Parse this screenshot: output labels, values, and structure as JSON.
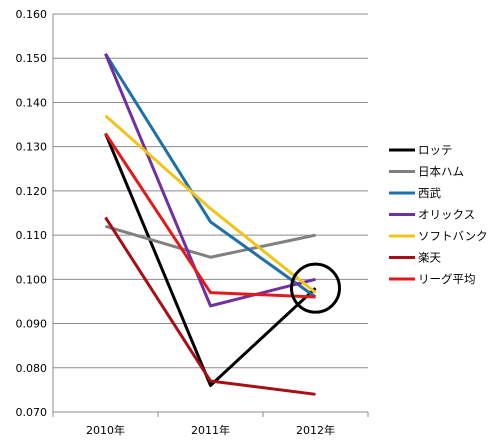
{
  "chart_data": {
    "type": "line",
    "categories": [
      "2010年",
      "2011年",
      "2012年"
    ],
    "ylim": [
      0.07,
      0.16
    ],
    "yticks": [
      "0.070",
      "0.080",
      "0.090",
      "0.100",
      "0.110",
      "0.120",
      "0.130",
      "0.140",
      "0.150",
      "0.160"
    ],
    "grid": "horizontal",
    "legend": "right",
    "series": [
      {
        "name": "ロッテ",
        "color": "#000000",
        "values": [
          0.133,
          0.076,
          0.098
        ]
      },
      {
        "name": "日本ハム",
        "color": "#808080",
        "values": [
          0.112,
          0.105,
          0.11
        ]
      },
      {
        "name": "西武",
        "color": "#1f6fa8",
        "values": [
          0.151,
          0.113,
          0.096
        ]
      },
      {
        "name": "オリックス",
        "color": "#7030a0",
        "values": [
          0.151,
          0.094,
          0.1
        ]
      },
      {
        "name": "ソフトバンク",
        "color": "#f0c419",
        "values": [
          0.137,
          0.116,
          0.097
        ]
      },
      {
        "name": "楽天",
        "color": "#a50f15",
        "values": [
          0.114,
          0.077,
          0.074
        ]
      },
      {
        "name": "リーグ平均",
        "color": "#e31a1c",
        "values": [
          0.133,
          0.097,
          0.096
        ]
      }
    ],
    "annotations": [
      {
        "shape": "circle",
        "category": "2012年",
        "value": 0.098
      }
    ]
  }
}
